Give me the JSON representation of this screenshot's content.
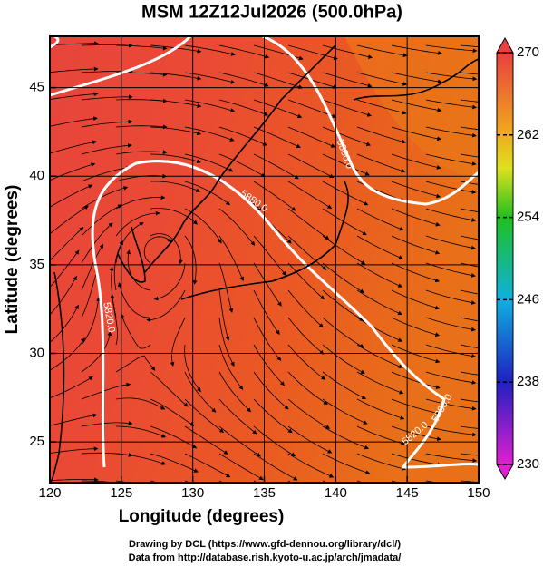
{
  "title": "MSM 12Z12Jul2026 (500.0hPa)",
  "map": {
    "x_label": "Longitude (degrees)",
    "y_label": "Latitude  (degrees)",
    "xlim": [
      120,
      150
    ],
    "ylim": [
      22.7,
      47.9
    ],
    "xticks": [
      120,
      125,
      130,
      135,
      140,
      145,
      150
    ],
    "yticks": [
      25,
      30,
      35,
      40,
      45
    ],
    "grid": true
  },
  "colorbar": {
    "lim": [
      230,
      270
    ],
    "ticks": [
      230,
      238,
      246,
      254,
      262,
      270
    ]
  },
  "contour_labels": [
    "5820.0",
    "5880.0",
    "5880.0",
    "5820.0",
    "5880.0"
  ],
  "footer": [
    "Drawing by DCL (https://www.gfd-dennou.org/library/dcl/)",
    "Data from http://database.rish.kyoto-u.ac.jp/arch/jmadata/"
  ]
}
